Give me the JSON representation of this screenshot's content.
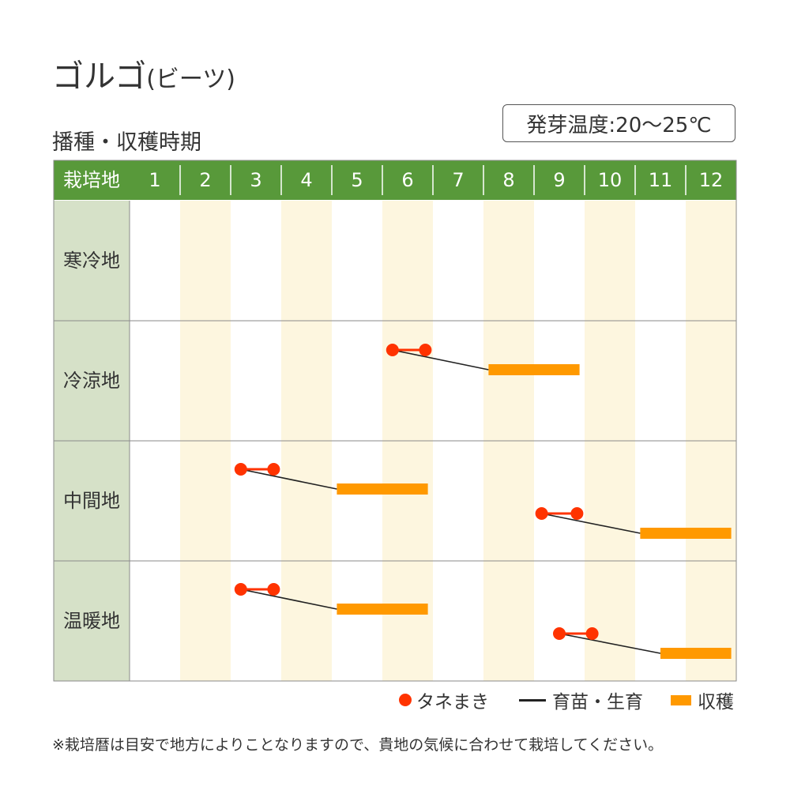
{
  "title": "ゴルゴ",
  "title_sub": "(ビーツ)",
  "subtitle": "播種・収穫時期",
  "temp_label": "発芽温度:20〜25℃",
  "colors": {
    "header_bg": "#58993a",
    "header_text": "#ffffff",
    "rowlabel_bg": "#d6e1c8",
    "stripe": "#fdf6df",
    "grid": "#8a8a8a",
    "sowing": "#ff3300",
    "growing": "#222222",
    "harvest": "#ff9900"
  },
  "chart_data": {
    "type": "gantt",
    "header_label": "栽培地",
    "months": [
      "1",
      "2",
      "3",
      "4",
      "5",
      "6",
      "7",
      "8",
      "9",
      "10",
      "11",
      "12"
    ],
    "rows": [
      {
        "name": "寒冷地",
        "activities": []
      },
      {
        "name": "冷涼地",
        "activities": [
          {
            "sow": [
              6.2,
              6.85
            ],
            "harvest": [
              8.1,
              9.9
            ]
          }
        ]
      },
      {
        "name": "中間地",
        "activities": [
          {
            "sow": [
              3.2,
              3.85
            ],
            "harvest": [
              5.1,
              6.9
            ]
          },
          {
            "sow": [
              9.15,
              9.85
            ],
            "harvest": [
              11.1,
              12.9
            ]
          }
        ]
      },
      {
        "name": "温暖地",
        "activities": [
          {
            "sow": [
              3.2,
              3.85
            ],
            "harvest": [
              5.1,
              6.9
            ]
          },
          {
            "sow": [
              9.5,
              10.15
            ],
            "harvest": [
              11.5,
              12.9
            ]
          }
        ]
      }
    ]
  },
  "legend": {
    "sowing": "タネまき",
    "growing": "育苗・生育",
    "harvest": "収穫"
  },
  "note": "※栽培暦は目安で地方によりことなりますので、貴地の気候に合わせて栽培してください。"
}
